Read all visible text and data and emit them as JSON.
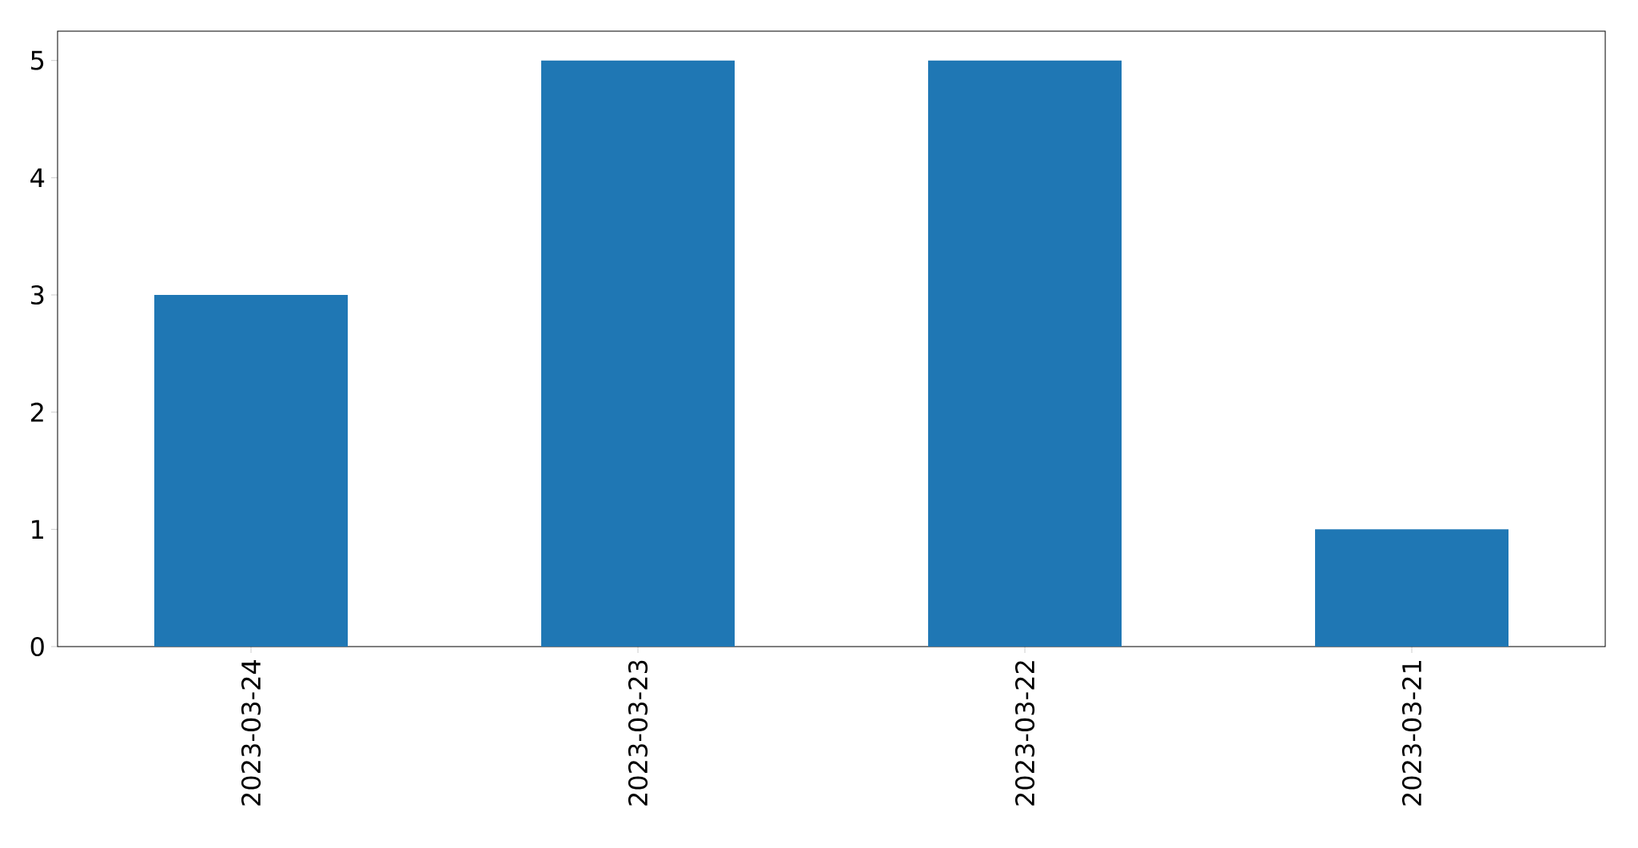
{
  "chart_data": {
    "type": "bar",
    "categories": [
      "2023-03-24",
      "2023-03-23",
      "2023-03-22",
      "2023-03-21"
    ],
    "values": [
      3,
      5,
      5,
      1
    ],
    "color": "#1f77b4",
    "ylim": [
      0,
      5.25
    ],
    "yticks": [
      0,
      1,
      2,
      3,
      4,
      5
    ]
  }
}
